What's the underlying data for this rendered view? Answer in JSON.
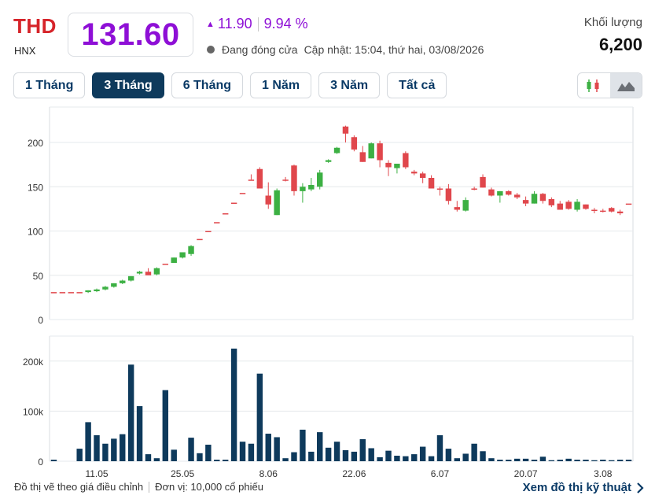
{
  "header": {
    "ticker": "THD",
    "exchange": "HNX",
    "price": "131.60",
    "change": "11.90",
    "change_pct": "9.94 %",
    "status": "Đang đóng cửa",
    "updated": "Cập nhật: 15:04, thứ hai, 03/08/2026",
    "volume_label": "Khối lượng",
    "volume_value": "6,200"
  },
  "range_tabs": [
    {
      "label": "1 Tháng",
      "active": false
    },
    {
      "label": "3 Tháng",
      "active": true
    },
    {
      "label": "6 Tháng",
      "active": false
    },
    {
      "label": "1 Năm",
      "active": false
    },
    {
      "label": "3 Năm",
      "active": false
    },
    {
      "label": "Tất cả",
      "active": false
    }
  ],
  "chart_type_toggle": {
    "candlestick_icon": "candlestick-icon",
    "area_icon": "mountain-chart-icon",
    "active": "area"
  },
  "colors": {
    "up": "#3cb043",
    "down": "#e0474c",
    "reference": "#e0474c",
    "volume": "#0e3a5c",
    "accent": "#8e0fd6",
    "ticker": "#d6242a"
  },
  "footer": {
    "note_left": "Đồ thị vẽ theo giá điều chỉnh",
    "note_unit": "Đơn vị: 10,000 cổ phiếu",
    "tech_link": "Xem đồ thị kỹ thuật"
  },
  "chart_data": [
    {
      "type": "candlestick",
      "title": "",
      "ylim": [
        0,
        240
      ],
      "yticks": [
        "0",
        "50",
        "100",
        "150",
        "200"
      ],
      "ytick_values": [
        0,
        50,
        100,
        150,
        200
      ],
      "x_ticks": [
        "11.05",
        "25.05",
        "8.06",
        "22.06",
        "6.07",
        "20.07",
        "3.08"
      ],
      "x_tick_index": [
        5,
        15,
        25,
        35,
        45,
        55,
        64
      ],
      "candles": [
        [
          31,
          31,
          31,
          31
        ],
        [
          31,
          31,
          31,
          31
        ],
        [
          31,
          31,
          31,
          31
        ],
        [
          31,
          31,
          31,
          31
        ],
        [
          31,
          33,
          30,
          33
        ],
        [
          32,
          35,
          31,
          34
        ],
        [
          34,
          38,
          33,
          37
        ],
        [
          37,
          41,
          36,
          41
        ],
        [
          41,
          45,
          40,
          44
        ],
        [
          44,
          49,
          43,
          49
        ],
        [
          52,
          55,
          51,
          54
        ],
        [
          54,
          58,
          52,
          50
        ],
        [
          51,
          59,
          50,
          58
        ],
        [
          63,
          63,
          63,
          63
        ],
        [
          64,
          70,
          64,
          70
        ],
        [
          70,
          76,
          69,
          76
        ],
        [
          74,
          84,
          72,
          83
        ],
        [
          91,
          91,
          91,
          91
        ],
        [
          100,
          100,
          100,
          100
        ],
        [
          110,
          110,
          110,
          110
        ],
        [
          120,
          120,
          120,
          120
        ],
        [
          132,
          132,
          132,
          132
        ],
        [
          143,
          143,
          143,
          143
        ],
        [
          158,
          164,
          158,
          158
        ],
        [
          170,
          172,
          148,
          148
        ],
        [
          140,
          155,
          125,
          130
        ],
        [
          118,
          148,
          118,
          146
        ],
        [
          158,
          161,
          156,
          158
        ],
        [
          174,
          175,
          140,
          145
        ],
        [
          145,
          154,
          132,
          150
        ],
        [
          147,
          160,
          145,
          152
        ],
        [
          150,
          169,
          147,
          166
        ],
        [
          178,
          181,
          177,
          180
        ],
        [
          188,
          195,
          187,
          194
        ],
        [
          218,
          219,
          200,
          210
        ],
        [
          206,
          208,
          190,
          192
        ],
        [
          189,
          196,
          178,
          178
        ],
        [
          182,
          200,
          182,
          199
        ],
        [
          199,
          202,
          172,
          180
        ],
        [
          177,
          180,
          162,
          172
        ],
        [
          171,
          175,
          165,
          176
        ],
        [
          188,
          190,
          170,
          172
        ],
        [
          167,
          169,
          163,
          165
        ],
        [
          165,
          167,
          154,
          160
        ],
        [
          160,
          163,
          148,
          148
        ],
        [
          148,
          150,
          140,
          148
        ],
        [
          148,
          153,
          130,
          134
        ],
        [
          127,
          134,
          122,
          124
        ],
        [
          123,
          138,
          122,
          135
        ],
        [
          148,
          150,
          146,
          148
        ],
        [
          161,
          164,
          149,
          149
        ],
        [
          147,
          149,
          139,
          140
        ],
        [
          140,
          145,
          132,
          145
        ],
        [
          145,
          146,
          140,
          141
        ],
        [
          141,
          143,
          136,
          138
        ],
        [
          135,
          139,
          128,
          131
        ],
        [
          131,
          145,
          131,
          142
        ],
        [
          142,
          143,
          131,
          134
        ],
        [
          136,
          138,
          127,
          129
        ],
        [
          131,
          134,
          124,
          124
        ],
        [
          133,
          135,
          124,
          125
        ],
        [
          124,
          136,
          122,
          133
        ],
        [
          130,
          130,
          124,
          125
        ],
        [
          124,
          126,
          120,
          124
        ],
        [
          123,
          125,
          121,
          123
        ],
        [
          126,
          127,
          121,
          122
        ],
        [
          122,
          124,
          118,
          120
        ],
        [
          131,
          131,
          131,
          131
        ]
      ]
    },
    {
      "type": "bar",
      "title": "",
      "ylim": [
        0,
        250000
      ],
      "yticks": [
        "0",
        "100k",
        "200k"
      ],
      "ytick_values": [
        0,
        100000,
        200000
      ],
      "values": [
        3000,
        0,
        0,
        25000,
        78000,
        52000,
        35000,
        45000,
        54000,
        193000,
        110000,
        14000,
        6000,
        142000,
        23000,
        0,
        47000,
        16000,
        33000,
        3000,
        3000,
        225000,
        39000,
        35000,
        175000,
        55000,
        48000,
        6000,
        18000,
        63000,
        19000,
        58000,
        27000,
        39000,
        22000,
        19000,
        44000,
        26000,
        8000,
        21000,
        11000,
        10000,
        14000,
        29000,
        10000,
        52000,
        25000,
        6000,
        15000,
        35000,
        20000,
        6000,
        3000,
        3000,
        5000,
        5000,
        3000,
        9000,
        2000,
        3000,
        5000,
        3000,
        3000,
        2000,
        3000,
        2000,
        3000,
        3000
      ]
    }
  ]
}
